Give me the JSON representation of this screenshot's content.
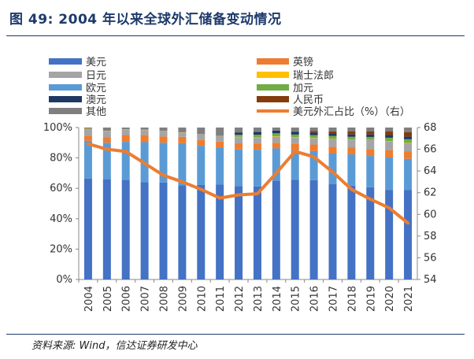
{
  "header": {
    "title": "图 49:   2004 年以来全球外汇储备变动情况"
  },
  "footer": {
    "source": "资料来源: Wind，信达证券研发中心"
  },
  "chart_data": {
    "type": "bar",
    "stacked": true,
    "categories": [
      "2004",
      "2005",
      "2006",
      "2007",
      "2008",
      "2009",
      "2010",
      "2011",
      "2012",
      "2013",
      "2014",
      "2015",
      "2016",
      "2017",
      "2018",
      "2019",
      "2020",
      "2021"
    ],
    "y_left": {
      "min": 0,
      "max": 100,
      "ticks": [
        "0%",
        "20%",
        "40%",
        "60%",
        "80%",
        "100%"
      ]
    },
    "y_right": {
      "min": 54,
      "max": 68,
      "ticks": [
        "54",
        "56",
        "58",
        "60",
        "62",
        "64",
        "66",
        "68"
      ]
    },
    "series": [
      {
        "name": "美元",
        "color": "#4472c4",
        "values": [
          66.5,
          66.0,
          65.5,
          64.1,
          63.8,
          62.0,
          62.2,
          62.6,
          61.5,
          61.2,
          65.1,
          65.7,
          65.4,
          62.7,
          61.7,
          60.7,
          59.0,
          58.8
        ]
      },
      {
        "name": "欧元",
        "color": "#5b9bd5",
        "values": [
          24.8,
          24.0,
          25.1,
          26.3,
          26.2,
          27.7,
          25.8,
          24.4,
          24.1,
          24.2,
          21.2,
          19.1,
          19.1,
          20.2,
          20.7,
          20.6,
          21.3,
          20.6
        ]
      },
      {
        "name": "英镑",
        "color": "#ed7d31",
        "values": [
          3.4,
          3.7,
          4.5,
          4.8,
          4.2,
          4.2,
          3.9,
          3.8,
          4.0,
          4.0,
          3.7,
          4.7,
          4.4,
          4.5,
          4.4,
          4.6,
          4.7,
          4.8
        ]
      },
      {
        "name": "日元",
        "color": "#a5a5a5",
        "values": [
          4.3,
          4.0,
          3.5,
          3.2,
          3.5,
          2.9,
          3.7,
          3.6,
          4.1,
          3.8,
          4.0,
          3.8,
          4.0,
          4.9,
          5.2,
          5.9,
          6.0,
          5.5
        ]
      },
      {
        "name": "瑞士法郎",
        "color": "#ffc000",
        "values": [
          0.2,
          0.2,
          0.2,
          0.2,
          0.1,
          0.1,
          0.1,
          0.1,
          0.2,
          0.3,
          0.3,
          0.3,
          0.2,
          0.2,
          0.1,
          0.1,
          0.2,
          0.2
        ]
      },
      {
        "name": "加元",
        "color": "#70ad47",
        "values": [
          0,
          0,
          0,
          0,
          0,
          0,
          0,
          0,
          1.4,
          1.8,
          1.9,
          1.8,
          1.9,
          2.0,
          1.8,
          1.9,
          2.1,
          2.4
        ]
      },
      {
        "name": "澳元",
        "color": "#1f3864",
        "values": [
          0,
          0,
          0,
          0,
          0,
          0,
          0,
          0,
          1.5,
          1.8,
          1.8,
          1.8,
          1.7,
          1.8,
          1.6,
          1.7,
          1.8,
          1.8
        ]
      },
      {
        "name": "人民币",
        "color": "#843c0c",
        "values": [
          0,
          0,
          0,
          0,
          0,
          0,
          0,
          0,
          0,
          0,
          0,
          0,
          1.1,
          1.2,
          1.9,
          1.9,
          2.3,
          2.8
        ]
      },
      {
        "name": "其他",
        "color": "#7f7f7f",
        "values": [
          0.8,
          2.1,
          1.2,
          1.4,
          2.2,
          3.1,
          4.3,
          5.5,
          3.2,
          2.9,
          2.0,
          2.8,
          2.2,
          2.5,
          2.6,
          2.6,
          2.6,
          3.1
        ]
      }
    ],
    "line": {
      "name": "美元外汇占比（%）（右）",
      "color": "#ed7d31",
      "axis": "right",
      "values": [
        66.5,
        66.0,
        65.8,
        64.7,
        63.6,
        63.0,
        62.3,
        61.5,
        61.8,
        61.9,
        63.8,
        65.8,
        65.3,
        63.9,
        62.3,
        61.4,
        60.6,
        59.2
      ]
    },
    "legend": {
      "placement": "top",
      "left": [
        "美元",
        "日元",
        "欧元",
        "澳元",
        "其他"
      ],
      "right": [
        "英镑",
        "瑞士法郎",
        "加元",
        "人民币",
        "美元外汇占比（%）（右）"
      ]
    },
    "grid": false
  }
}
